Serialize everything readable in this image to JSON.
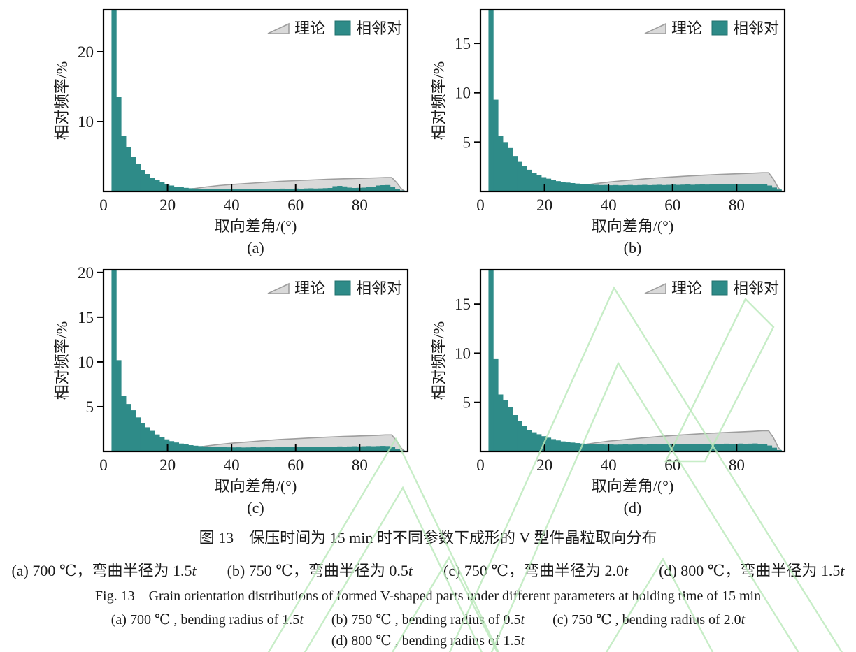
{
  "colors": {
    "bar": "#2e8b88",
    "bar_edge": "#20706e",
    "area_fill": "#d9d9d9",
    "area_stroke": "#9e9e9e",
    "axis": "#000000",
    "watermark": "#b9e9b9"
  },
  "legend": {
    "theory_label": "理论",
    "pairs_label": "相邻对"
  },
  "axes_text": {
    "xlabel": "取向差角/(°)",
    "ylabel": "相对频率/%"
  },
  "captions": {
    "cn_title": "图 13　保压时间为 15 min 时不同参数下成形的 V 型件晶粒取向分布",
    "cn_sub": "(a) 700 ℃，弯曲半径为 1.5t　　(b) 750 ℃，弯曲半径为 0.5t　　(c) 750 ℃，弯曲半径为 2.0t　　(d) 800 ℃，弯曲半径为 1.5t",
    "en_title": "Fig. 13　Grain orientation distributions of formed V-shaped parts under different parameters at holding time of 15 min",
    "en_sub1": "(a) 700 ℃ , bending radius of 1.5t　　(b) 750 ℃ , bending radius of 0.5t　　(c) 750 ℃ , bending radius of 2.0t",
    "en_sub2": "(d) 800 ℃ , bending radius of 1.5t"
  },
  "chart_data": [
    {
      "id": "a",
      "sublabel": "(a)",
      "type": "bar",
      "xlabel": "取向差角/(°)",
      "ylabel": "相对频率/%",
      "xlim": [
        0,
        95
      ],
      "ylim": [
        0,
        26
      ],
      "xticks": [
        0,
        20,
        40,
        60,
        80
      ],
      "yticks": [
        10,
        20
      ],
      "legend": [
        "理论",
        "相邻对"
      ],
      "legend_position": "top-right",
      "grid": false,
      "bin_start": 2.5,
      "bin_width": 1.5,
      "series": [
        {
          "name": "相邻对",
          "kind": "histogram",
          "values": [
            26,
            13.5,
            8.0,
            6.3,
            5.0,
            3.9,
            3.1,
            2.5,
            2.0,
            1.6,
            1.3,
            1.05,
            0.85,
            0.7,
            0.6,
            0.52,
            0.46,
            0.42,
            0.38,
            0.36,
            0.34,
            0.36,
            0.33,
            0.35,
            0.37,
            0.34,
            0.36,
            0.33,
            0.35,
            0.38,
            0.35,
            0.37,
            0.4,
            0.36,
            0.38,
            0.41,
            0.38,
            0.4,
            0.42,
            0.4,
            0.43,
            0.45,
            0.42,
            0.44,
            0.47,
            0.5,
            0.75,
            0.8,
            0.72,
            0.55,
            0.5,
            0.52,
            0.55,
            0.6,
            0.65,
            0.85,
            0.9,
            0.92,
            0.6,
            0.35,
            0.15
          ]
        },
        {
          "name": "理论",
          "kind": "area",
          "points": [
            [
              20,
              0.02
            ],
            [
              24,
              0.15
            ],
            [
              28,
              0.4
            ],
            [
              32,
              0.65
            ],
            [
              36,
              0.85
            ],
            [
              40,
              1.0
            ],
            [
              45,
              1.15
            ],
            [
              50,
              1.3
            ],
            [
              55,
              1.45
            ],
            [
              60,
              1.55
            ],
            [
              65,
              1.65
            ],
            [
              70,
              1.75
            ],
            [
              75,
              1.82
            ],
            [
              80,
              1.88
            ],
            [
              85,
              1.95
            ],
            [
              88,
              2.0
            ],
            [
              90,
              2.0
            ],
            [
              91.5,
              1.3
            ],
            [
              93,
              0.4
            ],
            [
              94,
              0.02
            ]
          ]
        }
      ]
    },
    {
      "id": "b",
      "sublabel": "(b)",
      "type": "bar",
      "xlabel": "取向差角/(°)",
      "ylabel": "相对频率/%",
      "xlim": [
        0,
        95
      ],
      "ylim": [
        0,
        18.4
      ],
      "xticks": [
        0,
        20,
        40,
        60,
        80
      ],
      "yticks": [
        5,
        10,
        15
      ],
      "legend": [
        "理论",
        "相邻对"
      ],
      "legend_position": "top-right",
      "grid": false,
      "bin_start": 2.5,
      "bin_width": 1.5,
      "series": [
        {
          "name": "相邻对",
          "kind": "histogram",
          "values": [
            18.4,
            9.3,
            5.6,
            5.0,
            4.4,
            3.6,
            3.0,
            2.6,
            2.2,
            1.9,
            1.65,
            1.45,
            1.3,
            1.15,
            1.05,
            0.97,
            0.9,
            0.85,
            0.8,
            0.76,
            0.72,
            0.7,
            0.68,
            0.65,
            0.66,
            0.63,
            0.65,
            0.62,
            0.64,
            0.66,
            0.63,
            0.65,
            0.67,
            0.64,
            0.66,
            0.68,
            0.65,
            0.67,
            0.7,
            0.67,
            0.69,
            0.71,
            0.68,
            0.7,
            0.72,
            0.7,
            0.72,
            0.74,
            0.71,
            0.73,
            0.75,
            0.72,
            0.74,
            0.76,
            0.73,
            0.75,
            0.77,
            0.74,
            0.6,
            0.4,
            0.2
          ]
        },
        {
          "name": "理论",
          "kind": "area",
          "points": [
            [
              20,
              0.02
            ],
            [
              24,
              0.14
            ],
            [
              28,
              0.38
            ],
            [
              32,
              0.62
            ],
            [
              36,
              0.8
            ],
            [
              40,
              0.95
            ],
            [
              45,
              1.1
            ],
            [
              50,
              1.24
            ],
            [
              55,
              1.38
            ],
            [
              60,
              1.47
            ],
            [
              65,
              1.57
            ],
            [
              70,
              1.66
            ],
            [
              75,
              1.73
            ],
            [
              80,
              1.79
            ],
            [
              85,
              1.85
            ],
            [
              88,
              1.9
            ],
            [
              90,
              1.9
            ],
            [
              91.5,
              1.25
            ],
            [
              93,
              0.38
            ],
            [
              94,
              0.02
            ]
          ]
        }
      ]
    },
    {
      "id": "c",
      "sublabel": "(c)",
      "type": "bar",
      "xlabel": "取向差角/(°)",
      "ylabel": "相对频率/%",
      "xlim": [
        0,
        95
      ],
      "ylim": [
        0,
        20.3
      ],
      "xticks": [
        0,
        20,
        40,
        60,
        80
      ],
      "yticks": [
        5,
        10,
        15,
        20
      ],
      "legend": [
        "理论",
        "相邻对"
      ],
      "legend_position": "top-right",
      "grid": false,
      "bin_start": 2.5,
      "bin_width": 1.5,
      "series": [
        {
          "name": "相邻对",
          "kind": "histogram",
          "values": [
            20.3,
            10.2,
            6.2,
            5.3,
            4.6,
            3.8,
            3.2,
            2.7,
            2.3,
            1.9,
            1.6,
            1.35,
            1.15,
            1.0,
            0.88,
            0.78,
            0.7,
            0.64,
            0.6,
            0.56,
            0.53,
            0.5,
            0.48,
            0.47,
            0.46,
            0.45,
            0.46,
            0.44,
            0.45,
            0.47,
            0.45,
            0.46,
            0.48,
            0.46,
            0.47,
            0.49,
            0.47,
            0.48,
            0.5,
            0.48,
            0.5,
            0.52,
            0.5,
            0.52,
            0.54,
            0.52,
            0.54,
            0.56,
            0.54,
            0.56,
            0.58,
            0.56,
            0.58,
            0.6,
            0.58,
            0.6,
            0.62,
            0.6,
            0.5,
            0.3,
            0.12
          ]
        },
        {
          "name": "理论",
          "kind": "area",
          "points": [
            [
              20,
              0.02
            ],
            [
              24,
              0.14
            ],
            [
              28,
              0.38
            ],
            [
              32,
              0.6
            ],
            [
              36,
              0.78
            ],
            [
              40,
              0.92
            ],
            [
              45,
              1.06
            ],
            [
              50,
              1.2
            ],
            [
              55,
              1.33
            ],
            [
              60,
              1.42
            ],
            [
              65,
              1.52
            ],
            [
              70,
              1.6
            ],
            [
              75,
              1.67
            ],
            [
              80,
              1.73
            ],
            [
              85,
              1.79
            ],
            [
              88,
              1.85
            ],
            [
              90,
              1.85
            ],
            [
              91.5,
              1.2
            ],
            [
              93,
              0.36
            ],
            [
              94,
              0.02
            ]
          ]
        }
      ]
    },
    {
      "id": "d",
      "sublabel": "(d)",
      "type": "bar",
      "xlabel": "取向差角/(°)",
      "ylabel": "相对频率/%",
      "xlim": [
        0,
        95
      ],
      "ylim": [
        0,
        18.5
      ],
      "xticks": [
        0,
        20,
        40,
        60,
        80
      ],
      "yticks": [
        5,
        10,
        15
      ],
      "legend": [
        "理论",
        "相邻对"
      ],
      "legend_position": "top-right",
      "grid": false,
      "bin_start": 2.5,
      "bin_width": 1.5,
      "series": [
        {
          "name": "相邻对",
          "kind": "histogram",
          "values": [
            18.5,
            9.4,
            5.8,
            5.2,
            4.5,
            3.7,
            3.1,
            2.6,
            2.2,
            1.95,
            1.75,
            1.55,
            1.4,
            1.25,
            1.12,
            1.02,
            0.95,
            0.9,
            0.85,
            0.8,
            0.78,
            0.75,
            0.73,
            0.72,
            0.7,
            0.71,
            0.69,
            0.7,
            0.72,
            0.7,
            0.71,
            0.73,
            0.7,
            0.72,
            0.74,
            0.71,
            0.73,
            0.75,
            0.72,
            0.74,
            0.76,
            0.73,
            0.75,
            0.77,
            0.74,
            0.76,
            0.78,
            0.75,
            0.77,
            0.79,
            0.76,
            0.78,
            0.8,
            0.77,
            0.79,
            0.81,
            0.78,
            0.76,
            0.6,
            0.38,
            0.15
          ]
        },
        {
          "name": "理论",
          "kind": "area",
          "points": [
            [
              20,
              0.02
            ],
            [
              24,
              0.15
            ],
            [
              28,
              0.42
            ],
            [
              32,
              0.68
            ],
            [
              36,
              0.88
            ],
            [
              40,
              1.05
            ],
            [
              45,
              1.2
            ],
            [
              50,
              1.36
            ],
            [
              55,
              1.5
            ],
            [
              60,
              1.62
            ],
            [
              65,
              1.72
            ],
            [
              70,
              1.82
            ],
            [
              75,
              1.9
            ],
            [
              80,
              1.97
            ],
            [
              85,
              2.04
            ],
            [
              88,
              2.1
            ],
            [
              90,
              2.1
            ],
            [
              91.5,
              1.4
            ],
            [
              93,
              0.42
            ],
            [
              94,
              0.02
            ]
          ]
        }
      ]
    }
  ]
}
